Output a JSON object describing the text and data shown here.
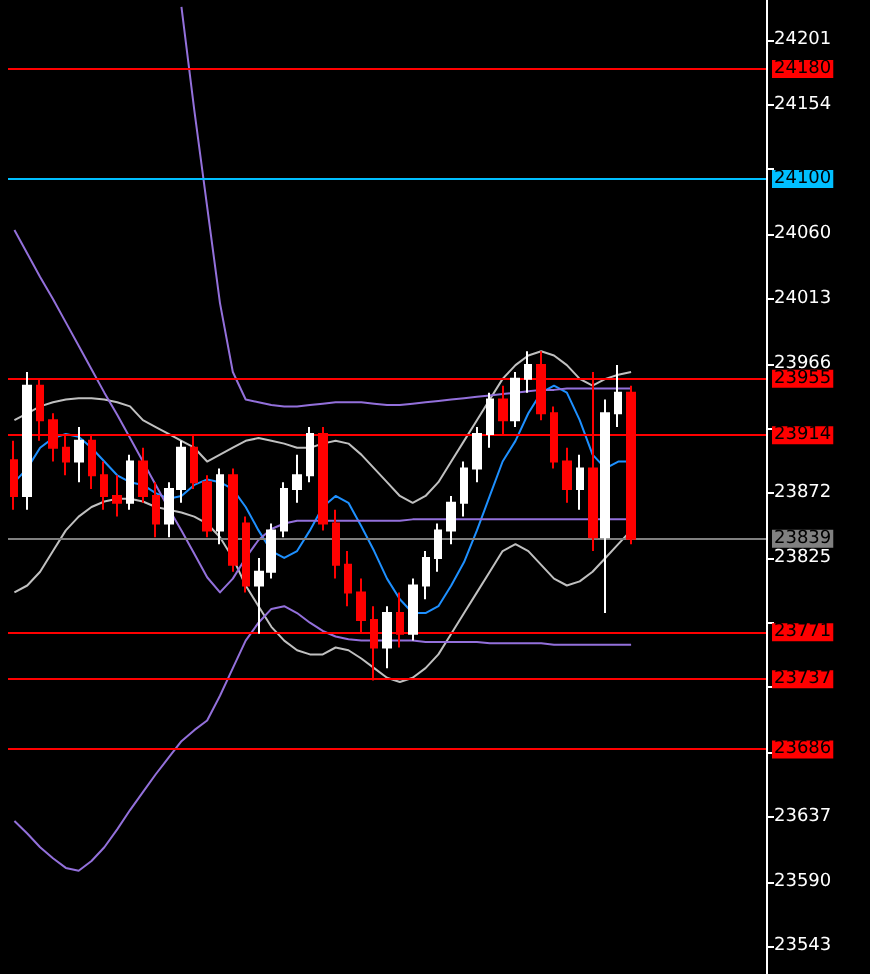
{
  "chart_data": {
    "type": "candlestick",
    "categories": [
      null,
      null,
      null,
      null,
      null,
      null,
      null,
      null,
      null,
      null,
      null,
      null,
      null,
      null,
      null,
      null,
      null,
      null,
      null,
      null,
      null,
      null,
      null,
      null,
      null,
      null,
      null,
      null,
      null,
      null,
      null,
      null,
      null,
      null,
      null,
      null,
      null,
      null,
      null,
      null,
      null,
      null,
      null,
      null,
      null,
      null,
      null,
      null,
      null,
      null,
      null,
      null,
      null,
      null,
      null,
      null,
      null,
      null,
      null
    ],
    "ohlc": [
      [
        23896,
        23910,
        23860,
        23870
      ],
      [
        23870,
        23960,
        23860,
        23950
      ],
      [
        23950,
        23955,
        23910,
        23925
      ],
      [
        23925,
        23930,
        23895,
        23905
      ],
      [
        23905,
        23915,
        23885,
        23895
      ],
      [
        23895,
        23920,
        23880,
        23910
      ],
      [
        23910,
        23915,
        23875,
        23885
      ],
      [
        23885,
        23895,
        23860,
        23870
      ],
      [
        23870,
        23885,
        23855,
        23865
      ],
      [
        23865,
        23900,
        23860,
        23895
      ],
      [
        23895,
        23905,
        23865,
        23870
      ],
      [
        23870,
        23880,
        23840,
        23850
      ],
      [
        23850,
        23880,
        23840,
        23875
      ],
      [
        23875,
        23910,
        23865,
        23905
      ],
      [
        23905,
        23915,
        23875,
        23880
      ],
      [
        23880,
        23885,
        23840,
        23845
      ],
      [
        23845,
        23890,
        23835,
        23885
      ],
      [
        23885,
        23890,
        23815,
        23820
      ],
      [
        23850,
        23855,
        23800,
        23805
      ],
      [
        23805,
        23825,
        23770,
        23815
      ],
      [
        23815,
        23850,
        23810,
        23845
      ],
      [
        23845,
        23880,
        23840,
        23875
      ],
      [
        23875,
        23900,
        23865,
        23885
      ],
      [
        23885,
        23920,
        23880,
        23915
      ],
      [
        23915,
        23920,
        23845,
        23850
      ],
      [
        23850,
        23860,
        23810,
        23820
      ],
      [
        23820,
        23830,
        23790,
        23800
      ],
      [
        23800,
        23810,
        23770,
        23780
      ],
      [
        23780,
        23790,
        23736,
        23760
      ],
      [
        23760,
        23790,
        23745,
        23785
      ],
      [
        23785,
        23800,
        23760,
        23770
      ],
      [
        23770,
        23810,
        23765,
        23805
      ],
      [
        23805,
        23830,
        23795,
        23825
      ],
      [
        23825,
        23850,
        23815,
        23845
      ],
      [
        23845,
        23870,
        23835,
        23865
      ],
      [
        23865,
        23895,
        23855,
        23890
      ],
      [
        23890,
        23920,
        23880,
        23915
      ],
      [
        23915,
        23945,
        23905,
        23940
      ],
      [
        23940,
        23950,
        23915,
        23925
      ],
      [
        23925,
        23960,
        23920,
        23955
      ],
      [
        23955,
        23975,
        23945,
        23965
      ],
      [
        23965,
        23975,
        23925,
        23930
      ],
      [
        23930,
        23935,
        23890,
        23895
      ],
      [
        23895,
        23905,
        23865,
        23875
      ],
      [
        23875,
        23900,
        23860,
        23890
      ],
      [
        23890,
        23960,
        23830,
        23840
      ],
      [
        23840,
        23940,
        23785,
        23930
      ],
      [
        23930,
        23965,
        23920,
        23945
      ],
      [
        23945,
        23950,
        23835,
        23839
      ],
      null,
      null,
      null,
      null,
      null,
      null,
      null,
      null,
      null,
      null
    ],
    "series": [
      {
        "type": "line",
        "color": "#1e90ff",
        "values": [
          23880,
          23890,
          23905,
          23912,
          23915,
          23913,
          23905,
          23895,
          23885,
          23880,
          23878,
          23872,
          23868,
          23870,
          23878,
          23882,
          23880,
          23875,
          23862,
          23845,
          23830,
          23825,
          23830,
          23845,
          23862,
          23870,
          23865,
          23848,
          23830,
          23810,
          23795,
          23785,
          23785,
          23790,
          23805,
          23822,
          23845,
          23870,
          23895,
          23910,
          23930,
          23945,
          23950,
          23945,
          23925,
          23900,
          23890,
          23895,
          23895,
          null,
          null,
          null,
          null,
          null,
          null,
          null,
          null,
          null,
          null
        ]
      },
      {
        "type": "line",
        "color": "#c0c0c0",
        "values": [
          23925,
          23930,
          23935,
          23938,
          23940,
          23941,
          23941,
          23940,
          23938,
          23935,
          23925,
          23920,
          23915,
          23910,
          23905,
          23895,
          23900,
          23905,
          23910,
          23912,
          23910,
          23908,
          23905,
          23905,
          23908,
          23910,
          23908,
          23900,
          23890,
          23880,
          23870,
          23865,
          23870,
          23880,
          23895,
          23910,
          23925,
          23940,
          23955,
          23965,
          23972,
          23975,
          23972,
          23965,
          23955,
          23950,
          23955,
          23958,
          23960,
          null,
          null,
          null,
          null,
          null,
          null,
          null,
          null,
          null,
          null
        ]
      },
      {
        "type": "line",
        "color": "#c0c0c0",
        "values": [
          23800,
          23805,
          23815,
          23830,
          23845,
          23855,
          23862,
          23866,
          23868,
          23868,
          23866,
          23862,
          23860,
          23858,
          23855,
          23850,
          23840,
          23825,
          23805,
          23790,
          23775,
          23765,
          23758,
          23755,
          23755,
          23760,
          23758,
          23752,
          23745,
          23738,
          23735,
          23738,
          23745,
          23755,
          23770,
          23785,
          23800,
          23815,
          23830,
          23835,
          23830,
          23820,
          23810,
          23805,
          23808,
          23815,
          23825,
          23835,
          23845,
          null,
          null,
          null,
          null,
          null,
          null,
          null,
          null,
          null,
          null
        ]
      },
      {
        "type": "line",
        "color": "#9370db",
        "values": [
          null,
          null,
          null,
          null,
          null,
          null,
          null,
          null,
          null,
          null,
          null,
          null,
          null,
          24225,
          24150,
          24080,
          24010,
          23960,
          23940,
          23938,
          23936,
          23935,
          23935,
          23936,
          23937,
          23938,
          23938,
          23938,
          23937,
          23936,
          23936,
          23937,
          23938,
          23939,
          23940,
          23941,
          23942,
          23943,
          23944,
          23945,
          23946,
          23947,
          23947,
          23948,
          23948,
          23948,
          23948,
          23948,
          23948,
          null,
          null,
          null,
          null,
          null,
          null,
          null,
          null,
          null,
          null
        ]
      },
      {
        "type": "line",
        "color": "#9370db",
        "values": [
          24063,
          24046,
          24029,
          24013,
          23996,
          23979,
          23962,
          23945,
          23929,
          23912,
          23895,
          23878,
          23861,
          23845,
          23828,
          23811,
          23800,
          23810,
          23825,
          23838,
          23846,
          23850,
          23852,
          23852,
          23852,
          23852,
          23852,
          23852,
          23852,
          23852,
          23852,
          23853,
          23853,
          23853,
          23853,
          23853,
          23853,
          23853,
          23853,
          23853,
          23853,
          23853,
          23853,
          23853,
          23853,
          23853,
          23853,
          23853,
          23853,
          null,
          null,
          null,
          null,
          null,
          null,
          null,
          null,
          null,
          null
        ]
      },
      {
        "type": "line",
        "color": "#9370db",
        "values": [
          23634,
          23625,
          23615,
          23607,
          23600,
          23598,
          23605,
          23615,
          23628,
          23642,
          23655,
          23668,
          23680,
          23692,
          23700,
          23707,
          23725,
          23745,
          23765,
          23778,
          23788,
          23790,
          23785,
          23778,
          23772,
          23768,
          23766,
          23765,
          23765,
          23765,
          23765,
          23765,
          23764,
          23764,
          23764,
          23764,
          23764,
          23763,
          23763,
          23763,
          23763,
          23763,
          23762,
          23762,
          23762,
          23762,
          23762,
          23762,
          23762,
          null,
          null,
          null,
          null,
          null,
          null,
          null,
          null,
          null,
          null
        ]
      }
    ],
    "ylim": [
      23523,
      24230
    ],
    "yticks": [
      24201,
      24154,
      {
        "value": 24107,
        "label": null
      },
      24060,
      24013,
      23966,
      {
        "value": 23919,
        "label": null
      },
      23872,
      23825,
      {
        "value": 23778,
        "label": null
      },
      {
        "value": 23731,
        "label": null
      },
      {
        "value": 23684,
        "label": null
      },
      23637,
      23590,
      23543
    ],
    "ref_lines": [
      {
        "axis": "y",
        "value": 24180,
        "label": "24180",
        "color": "#ff0000"
      },
      {
        "axis": "y",
        "value": 24100,
        "label": "24100",
        "color": "#00bfff"
      },
      {
        "axis": "y",
        "value": 23955,
        "label": "23955",
        "color": "#ff0000"
      },
      {
        "axis": "y",
        "value": 23914,
        "label": "23914",
        "color": "#ff0000"
      },
      {
        "axis": "y",
        "value": 23839,
        "label": "23839",
        "color": "#808080"
      },
      {
        "axis": "y",
        "value": 23771,
        "label": "23771",
        "color": "#ff0000"
      },
      {
        "axis": "y",
        "value": 23737,
        "label": "23737",
        "color": "#ff0000"
      },
      {
        "axis": "y",
        "value": 23686,
        "label": "23686",
        "color": "#ff0000"
      }
    ],
    "tick_labels": "y",
    "grid": false,
    "line_style": "solid"
  }
}
